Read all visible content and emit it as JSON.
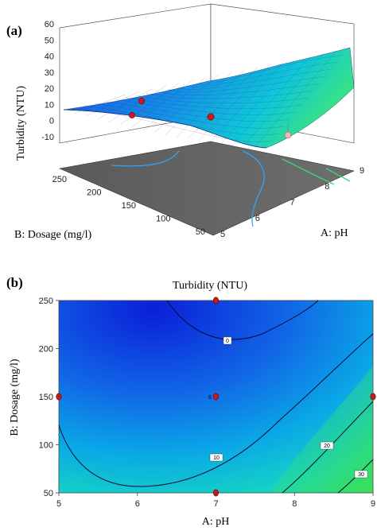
{
  "chart_data": [
    {
      "panel": "(a)",
      "type": "surface",
      "zlabel": "Turbidity (NTU)",
      "xlabel": "A: pH",
      "ylabel": "B: Dosage (mg/l)",
      "x_ticks": [
        "5",
        "6",
        "7",
        "8",
        "9"
      ],
      "y_ticks": [
        "50",
        "100",
        "150",
        "200",
        "250"
      ],
      "z_ticks": [
        "-10",
        "0",
        "10",
        "20",
        "30",
        "40",
        "50",
        "60"
      ],
      "xlim": [
        5,
        9
      ],
      "ylim": [
        50,
        250
      ],
      "zlim": [
        -10,
        60
      ],
      "design_points": [
        {
          "x": 7,
          "y": 150,
          "z": 8
        },
        {
          "x": 5,
          "y": 150,
          "z": 4
        },
        {
          "x": 7,
          "y": 250,
          "z": 12
        },
        {
          "x": 9,
          "y": 150,
          "z": 6
        }
      ]
    },
    {
      "panel": "(b)",
      "type": "contour",
      "title": "Turbidity (NTU)",
      "xlabel": "A: pH",
      "ylabel": "B: Dosage (mg/l)",
      "x_ticks": [
        "5",
        "6",
        "7",
        "8",
        "9"
      ],
      "y_ticks": [
        "50",
        "100",
        "150",
        "200",
        "250"
      ],
      "xlim": [
        5,
        9
      ],
      "ylim": [
        50,
        250
      ],
      "contour_labels": [
        "0",
        "10",
        "20",
        "30"
      ],
      "center_point_count": "6",
      "design_points": [
        {
          "x": 5,
          "y": 150
        },
        {
          "x": 9,
          "y": 150
        },
        {
          "x": 7,
          "y": 50
        },
        {
          "x": 7,
          "y": 250
        },
        {
          "x": 7,
          "y": 150
        }
      ]
    }
  ]
}
